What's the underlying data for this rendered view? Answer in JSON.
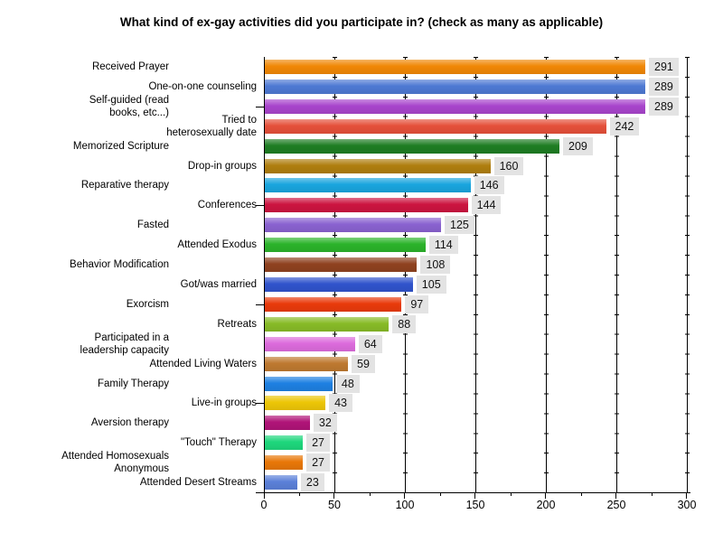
{
  "title": "What kind of ex-gay activities did you participate in? (check as many as applicable)",
  "chart_data": {
    "type": "bar",
    "orientation": "horizontal",
    "title": "What kind of ex-gay activities did you participate in? (check as many as applicable)",
    "categories": [
      "Received Prayer",
      "One-on-one counseling",
      "Self-guided (read\nbooks, etc...)",
      "Tried to\nheterosexually date",
      "Memorized Scripture",
      "Drop-in groups",
      "Reparative therapy",
      "Conferences",
      "Fasted",
      "Attended Exodus",
      "Behavior Modification",
      "Got/was married",
      "Exorcism",
      "Retreats",
      "Participated in a\nleadership capacity",
      "Attended Living Waters",
      "Family Therapy",
      "Live-in groups",
      "Aversion therapy",
      "\"Touch\" Therapy",
      "Attended Homosexuals\nAnonymous",
      "Attended Desert Streams"
    ],
    "values": [
      291,
      289,
      289,
      242,
      209,
      160,
      146,
      144,
      125,
      114,
      108,
      105,
      97,
      88,
      64,
      59,
      48,
      43,
      32,
      27,
      27,
      23
    ],
    "colors": [
      "#F08705",
      "#4E79D3",
      "#A845CC",
      "#E5503A",
      "#1E7D23",
      "#AF7E0E",
      "#19A5DE",
      "#CC1440",
      "#8A62D0",
      "#2BB32A",
      "#8F421F",
      "#3054CC",
      "#E93A0B",
      "#87BB27",
      "#DC6BDC",
      "#BE7930",
      "#1E80E2",
      "#EDC607",
      "#B01478",
      "#1ED77C",
      "#E87708",
      "#5B80D8"
    ],
    "value_labels_shown": true,
    "value_label_bg": "#e3e3e3",
    "xlabel": "",
    "ylabel": "",
    "xlim": [
      0,
      300
    ],
    "x_major_ticks": [
      0,
      50,
      100,
      150,
      200,
      250,
      300
    ],
    "x_minor_ticks": [
      25,
      75,
      125,
      175,
      225,
      275
    ],
    "grid": "vertical-solid-black",
    "legend": "none",
    "background": "#ffffff"
  }
}
